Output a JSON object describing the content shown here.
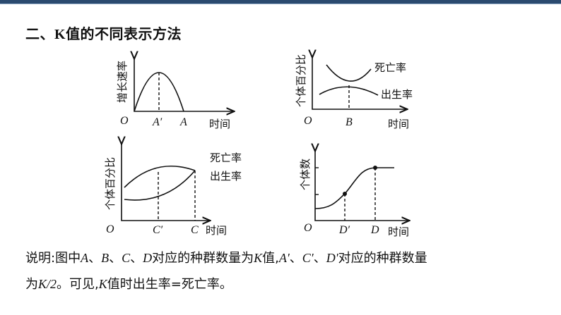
{
  "heading": {
    "prefix": "二、",
    "k": "K",
    "rest": "值的不同表示方法"
  },
  "panels": [
    {
      "ylabel": "增长速率",
      "origin": "O",
      "tick_labels": [
        "A′",
        "A"
      ],
      "xlabel": "时间"
    },
    {
      "ylabel": "个体百分比",
      "origin": "O",
      "tick_labels": [
        "B"
      ],
      "xlabel": "时间",
      "curve_labels": [
        "死亡率",
        "出生率"
      ]
    },
    {
      "ylabel": "个体百分比",
      "origin": "O",
      "tick_labels": [
        "C′",
        "C"
      ],
      "xlabel": "时间",
      "curve_labels": [
        "死亡率",
        "出生率"
      ]
    },
    {
      "ylabel": "个体数",
      "origin": "O",
      "tick_labels": [
        "D′",
        "D"
      ],
      "xlabel": "时间"
    }
  ],
  "caption": {
    "line1_a": "说明:图中",
    "A": "A",
    "sep1": "、",
    "B": "B",
    "sep2": "、",
    "C": "C",
    "sep3": "、",
    "D": "D",
    "line1_b": "对应的种群数量为",
    "K1": "K",
    "line1_c": "值,",
    "A2": "A′",
    "sep4": "、",
    "C2": "C′",
    "sep5": "、",
    "D2": "D'",
    "line1_d": "对应的种群数量",
    "line2_a": "为",
    "K2": "K/2",
    "line2_b": "。可见,",
    "K3": "K",
    "line2_c": "值时出生率=死亡率。"
  },
  "colors": {
    "ink": "#111111",
    "topbar": "#2b4a6f"
  }
}
